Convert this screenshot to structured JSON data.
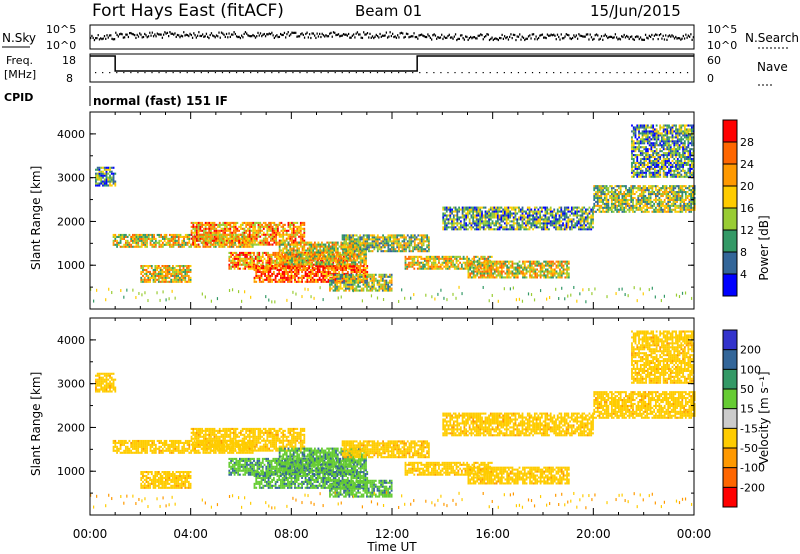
{
  "header": {
    "site": "Fort Hays East (fitACF)",
    "beam": "Beam 01",
    "date": "15/Jun/2015"
  },
  "noise_panel": {
    "left_label": "N.Sky",
    "right_label": "N.Search",
    "left_ticks": [
      "10^5",
      "10^0"
    ],
    "right_ticks": [
      "10^5",
      "10^0"
    ]
  },
  "freq_panel": {
    "left_label_1": "Freq.",
    "left_label_2": "[MHz]",
    "right_label": "Nave",
    "left_ticks": [
      "18",
      "8"
    ],
    "right_ticks": [
      "60",
      "0"
    ]
  },
  "cpid_panel": {
    "label": "CPID",
    "mode_text": "normal (fast) 151 IF"
  },
  "range_axis": {
    "label": "Slant Range [km]",
    "ticks": [
      "4000",
      "3000",
      "2000",
      "1000"
    ]
  },
  "time_axis": {
    "label": "Time UT",
    "ticks": [
      "00:00",
      "04:00",
      "08:00",
      "12:00",
      "16:00",
      "20:00",
      "00:00"
    ]
  },
  "power_scale": {
    "label": "Power [dB]",
    "ticks": [
      "28",
      "24",
      "20",
      "16",
      "12",
      "8",
      "4"
    ],
    "colors": [
      "#ff0000",
      "#ff6600",
      "#ff9900",
      "#ffcc00",
      "#99cc33",
      "#339966",
      "#336699",
      "#0000ff"
    ]
  },
  "velocity_scale": {
    "label": "Velocity [m s⁻¹]",
    "ticks": [
      "200",
      "100",
      "50",
      "15",
      "-15",
      "-50",
      "-100",
      "-200"
    ],
    "colors": [
      "#3333cc",
      "#336699",
      "#339966",
      "#66cc33",
      "#cccccc",
      "#ffcc00",
      "#ff9900",
      "#ff6600",
      "#ff0000"
    ]
  },
  "chart_data": {
    "type": "heatmap",
    "title": "Fort Hays East (fitACF) Beam 01 15/Jun/2015",
    "x_range_hours": [
      0,
      24
    ],
    "y_range_km": [
      0,
      4500
    ],
    "freq_mhz": [
      {
        "t_start": 0,
        "t_end": 1.0,
        "value": 18
      },
      {
        "t_start": 1.0,
        "t_end": 13.0,
        "value": 10.5
      },
      {
        "t_start": 13.0,
        "t_end": 24,
        "value": 18
      }
    ],
    "nave_approx": 10,
    "echo_regions": [
      {
        "t_start": 0.2,
        "t_end": 1.0,
        "r_start": 2800,
        "r_end": 3250,
        "power_db": 8,
        "velocity": -15
      },
      {
        "t_start": 0.9,
        "t_end": 6.5,
        "r_start": 1400,
        "r_end": 1700,
        "power_db": 16,
        "velocity": -15
      },
      {
        "t_start": 4.0,
        "t_end": 8.5,
        "r_start": 1450,
        "r_end": 1950,
        "power_db": 20,
        "velocity": -15
      },
      {
        "t_start": 2.0,
        "t_end": 4.0,
        "r_start": 600,
        "r_end": 1000,
        "power_db": 16,
        "velocity": -15
      },
      {
        "t_start": 5.5,
        "t_end": 10.5,
        "r_start": 900,
        "r_end": 1300,
        "power_db": 20,
        "velocity": 50
      },
      {
        "t_start": 6.5,
        "t_end": 11.0,
        "r_start": 600,
        "r_end": 1000,
        "power_db": 24,
        "velocity": 50
      },
      {
        "t_start": 7.5,
        "t_end": 11.0,
        "r_start": 1000,
        "r_end": 1500,
        "power_db": 16,
        "velocity": 50
      },
      {
        "t_start": 9.5,
        "t_end": 12.0,
        "r_start": 400,
        "r_end": 800,
        "power_db": 12,
        "velocity": 50
      },
      {
        "t_start": 10.0,
        "t_end": 13.5,
        "r_start": 1300,
        "r_end": 1700,
        "power_db": 12,
        "velocity": -15
      },
      {
        "t_start": 12.5,
        "t_end": 16.0,
        "r_start": 900,
        "r_end": 1200,
        "power_db": 16,
        "velocity": -15
      },
      {
        "t_start": 15.0,
        "t_end": 19.0,
        "r_start": 700,
        "r_end": 1100,
        "power_db": 16,
        "velocity": -15
      },
      {
        "t_start": 14.0,
        "t_end": 20.0,
        "r_start": 1800,
        "r_end": 2300,
        "power_db": 8,
        "velocity": -15
      },
      {
        "t_start": 20.0,
        "t_end": 24.0,
        "r_start": 2200,
        "r_end": 2800,
        "power_db": 12,
        "velocity": -15
      },
      {
        "t_start": 21.5,
        "t_end": 24.0,
        "r_start": 3000,
        "r_end": 4200,
        "power_db": 8,
        "velocity": -15
      }
    ]
  }
}
